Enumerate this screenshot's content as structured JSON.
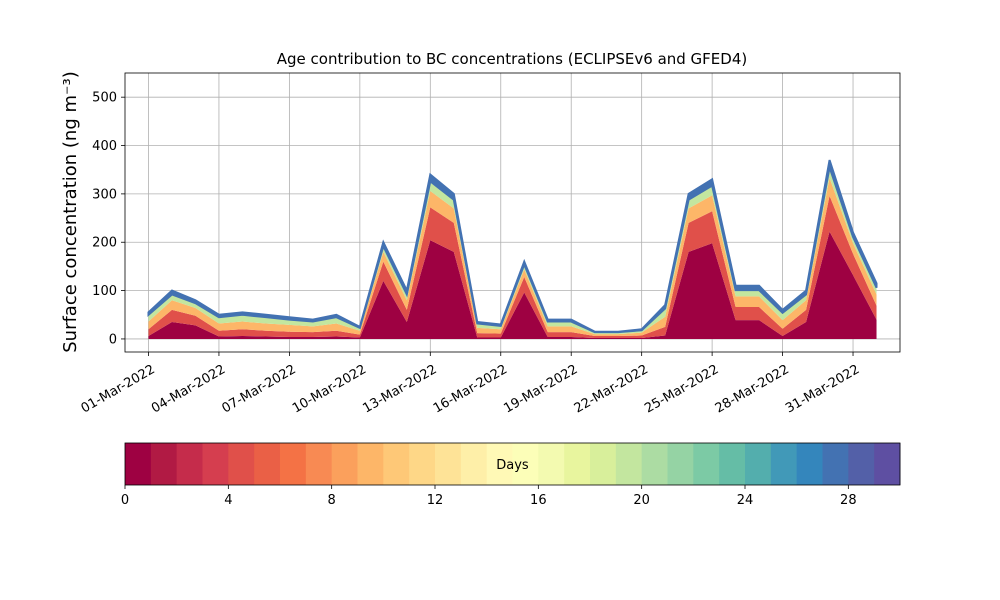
{
  "chart_data": {
    "type": "stacked_area",
    "title": "Age contribution to BC concentrations (ECLIPSEv6 and GFED4)",
    "y_label": "Surface concentration (ng m⁻³)",
    "x": [
      "2022-03-01",
      "2022-03-02",
      "2022-03-03",
      "2022-03-04",
      "2022-03-05",
      "2022-03-06",
      "2022-03-07",
      "2022-03-08",
      "2022-03-09",
      "2022-03-10",
      "2022-03-11",
      "2022-03-12",
      "2022-03-13",
      "2022-03-14",
      "2022-03-15",
      "2022-03-16",
      "2022-03-17",
      "2022-03-18",
      "2022-03-19",
      "2022-03-20",
      "2022-03-21",
      "2022-03-22",
      "2022-03-23",
      "2022-03-24",
      "2022-03-25",
      "2022-03-26",
      "2022-03-27",
      "2022-03-28",
      "2022-03-29",
      "2022-03-30",
      "2022-03-31",
      "2022-04-01"
    ],
    "series": [
      {
        "color": "#9e0142",
        "values": [
          6,
          35,
          28,
          5,
          6,
          5,
          4,
          4,
          5,
          3,
          120,
          35,
          204,
          180,
          3,
          3,
          96,
          4,
          4,
          2,
          2,
          2,
          7,
          180,
          198,
          39,
          39,
          6,
          35,
          222,
          132,
          40
        ]
      },
      {
        "color": "#e0504a",
        "values": [
          14,
          25,
          20,
          12,
          14,
          12,
          11,
          10,
          12,
          6,
          40,
          25,
          68,
          60,
          9,
          8,
          32,
          10,
          10,
          4,
          4,
          5,
          18,
          60,
          66,
          27,
          27,
          15,
          25,
          74,
          44,
          29
        ]
      },
      {
        "color": "#fdb668",
        "values": [
          16,
          20,
          16,
          15,
          16,
          15,
          14,
          12,
          15,
          8,
          20,
          20,
          34,
          30,
          11,
          9,
          16,
          12,
          12,
          4,
          4,
          6,
          21,
          30,
          33,
          22,
          22,
          18,
          20,
          37,
          22,
          23
        ]
      },
      {
        "color": "#c3e69f",
        "values": [
          14,
          12,
          10,
          13,
          14,
          13,
          11,
          10,
          13,
          6,
          12,
          12,
          20,
          18,
          9,
          7,
          10,
          10,
          10,
          4,
          4,
          5,
          17,
          18,
          20,
          13,
          13,
          15,
          12,
          22,
          13,
          14
        ]
      },
      {
        "color": "#4372b2",
        "values": [
          5,
          8,
          6,
          5,
          5,
          5,
          5,
          4,
          5,
          2,
          8,
          8,
          14,
          12,
          3,
          3,
          6,
          4,
          4,
          1,
          1,
          2,
          7,
          12,
          13,
          9,
          9,
          6,
          8,
          15,
          9,
          9
        ]
      }
    ],
    "xlim": [
      "2022-02-28",
      "2022-04-02"
    ],
    "xticks": [
      {
        "value": "2022-03-01",
        "label": "01-Mar-2022"
      },
      {
        "value": "2022-03-04",
        "label": "04-Mar-2022"
      },
      {
        "value": "2022-03-07",
        "label": "07-Mar-2022"
      },
      {
        "value": "2022-03-10",
        "label": "10-Mar-2022"
      },
      {
        "value": "2022-03-13",
        "label": "13-Mar-2022"
      },
      {
        "value": "2022-03-16",
        "label": "16-Mar-2022"
      },
      {
        "value": "2022-03-19",
        "label": "19-Mar-2022"
      },
      {
        "value": "2022-03-22",
        "label": "22-Mar-2022"
      },
      {
        "value": "2022-03-25",
        "label": "25-Mar-2022"
      },
      {
        "value": "2022-03-28",
        "label": "28-Mar-2022"
      },
      {
        "value": "2022-03-31",
        "label": "31-Mar-2022"
      }
    ],
    "ylim": [
      -27,
      550
    ],
    "yticks": [
      0,
      100,
      200,
      300,
      400,
      500
    ],
    "grid": true,
    "colorbar": {
      "label": "Days",
      "lim": [
        0,
        30
      ],
      "ticks": [
        0,
        4,
        8,
        12,
        16,
        20,
        24,
        28
      ],
      "colors": [
        "#9e0142",
        "#b11a44",
        "#c52c4b",
        "#d53e4f",
        "#e0504a",
        "#ea6046",
        "#f47245",
        "#f88a53",
        "#fba05c",
        "#fdb668",
        "#fec877",
        "#fed787",
        "#fee397",
        "#feefa8",
        "#fff9b6",
        "#fcfeb8",
        "#f3fab0",
        "#e8f59e",
        "#d8ef9b",
        "#c3e69f",
        "#acdca3",
        "#95d3a4",
        "#7ccaa5",
        "#65bda6",
        "#53aead",
        "#4199b8",
        "#3486bc",
        "#4372b2",
        "#5360a8",
        "#5e4fa2"
      ]
    }
  }
}
